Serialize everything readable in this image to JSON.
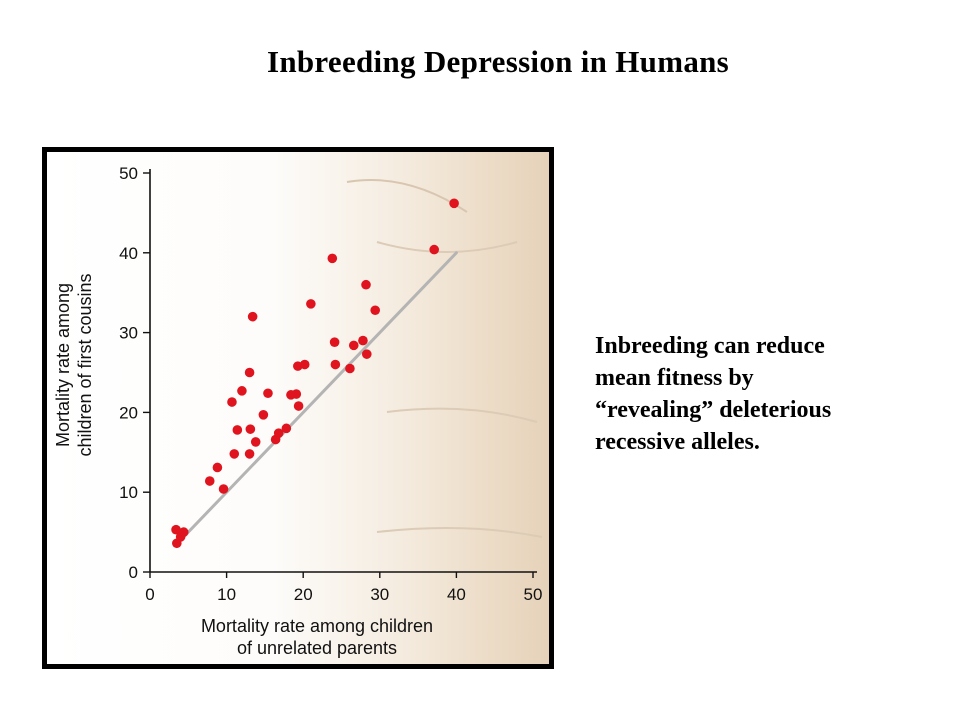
{
  "slide": {
    "title": "Inbreeding Depression in Humans",
    "caption_lines": [
      "Inbreeding can reduce",
      "mean fitness by",
      "“revealing” deleterious",
      "recessive alleles."
    ]
  },
  "colors": {
    "points": "#e0141e",
    "reference_line": "#b4b4b4",
    "axis": "#111111"
  },
  "chart_data": {
    "type": "scatter",
    "title": "",
    "xlabel_lines": [
      "Mortality rate among children",
      "of unrelated parents"
    ],
    "ylabel_lines": [
      "Mortality rate among",
      "children of first cousins"
    ],
    "xlim": [
      0,
      50
    ],
    "ylim": [
      0,
      50
    ],
    "xticks": [
      0,
      10,
      20,
      30,
      40,
      50
    ],
    "yticks": [
      0,
      10,
      20,
      30,
      40,
      50
    ],
    "grid": false,
    "reference_line": {
      "from": [
        4,
        4
      ],
      "to": [
        40,
        40
      ]
    },
    "points": [
      {
        "x": 3.4,
        "y": 5.3
      },
      {
        "x": 3.5,
        "y": 3.6
      },
      {
        "x": 4.0,
        "y": 4.4
      },
      {
        "x": 4.4,
        "y": 5.0
      },
      {
        "x": 7.8,
        "y": 11.4
      },
      {
        "x": 8.8,
        "y": 13.1
      },
      {
        "x": 9.6,
        "y": 10.4
      },
      {
        "x": 10.7,
        "y": 21.3
      },
      {
        "x": 11.0,
        "y": 14.8
      },
      {
        "x": 11.4,
        "y": 17.8
      },
      {
        "x": 12.0,
        "y": 22.7
      },
      {
        "x": 13.0,
        "y": 25.0
      },
      {
        "x": 13.0,
        "y": 14.8
      },
      {
        "x": 13.1,
        "y": 17.9
      },
      {
        "x": 13.4,
        "y": 32.0
      },
      {
        "x": 13.8,
        "y": 16.3
      },
      {
        "x": 14.8,
        "y": 19.7
      },
      {
        "x": 15.4,
        "y": 22.4
      },
      {
        "x": 16.4,
        "y": 16.6
      },
      {
        "x": 16.8,
        "y": 17.4
      },
      {
        "x": 17.8,
        "y": 18.0
      },
      {
        "x": 18.4,
        "y": 22.2
      },
      {
        "x": 19.1,
        "y": 22.3
      },
      {
        "x": 19.3,
        "y": 25.8
      },
      {
        "x": 19.4,
        "y": 20.8
      },
      {
        "x": 20.2,
        "y": 26.0
      },
      {
        "x": 21.0,
        "y": 33.6
      },
      {
        "x": 23.8,
        "y": 39.3
      },
      {
        "x": 24.1,
        "y": 28.8
      },
      {
        "x": 24.2,
        "y": 26.0
      },
      {
        "x": 26.1,
        "y": 25.5
      },
      {
        "x": 26.6,
        "y": 28.4
      },
      {
        "x": 27.8,
        "y": 29.0
      },
      {
        "x": 28.2,
        "y": 36.0
      },
      {
        "x": 28.3,
        "y": 27.3
      },
      {
        "x": 29.4,
        "y": 32.8
      },
      {
        "x": 37.1,
        "y": 40.4
      },
      {
        "x": 39.7,
        "y": 46.2
      }
    ]
  }
}
